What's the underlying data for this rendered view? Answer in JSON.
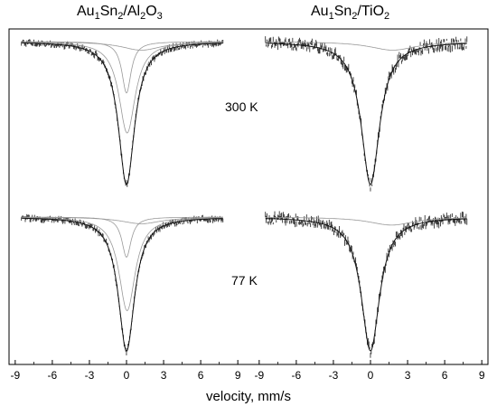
{
  "titles": {
    "left": {
      "base": "Au",
      "s1": "1",
      "mid": "Sn",
      "s2": "2",
      "tail": "/Al",
      "s3": "2",
      "end": "O",
      "s4": "3"
    },
    "right": {
      "base": "Au",
      "s1": "1",
      "mid": "Sn",
      "s2": "2",
      "tail": "/TiO",
      "s3": "2"
    }
  },
  "temperature_labels": {
    "top": "300 K",
    "bottom": "77 K"
  },
  "chart_data": {
    "type": "scatter",
    "xlabel": "velocity, mm/s",
    "xlim": [
      -9.5,
      9.5
    ],
    "xticks": [
      -9,
      -6,
      -3,
      0,
      3,
      6,
      9
    ],
    "x_data_range": [
      -8.5,
      7.8
    ],
    "grid": false,
    "panels": [
      {
        "sample": "Au1Sn2/Al2O3",
        "temperature": "300 K",
        "baseline_transmission": 1.0,
        "main_dip": {
          "center": 0.0,
          "depth": 1.0,
          "width": 1.6
        },
        "subspectra": [
          {
            "center": 0.0,
            "depth": 0.36,
            "width": 0.9
          },
          {
            "center": 0.05,
            "depth": 0.64,
            "width": 1.6
          },
          {
            "center": 1.2,
            "depth": 0.06,
            "width": 4.0
          }
        ]
      },
      {
        "sample": "Au1Sn2/TiO2",
        "temperature": "300 K",
        "baseline_transmission": 1.0,
        "main_dip": {
          "center": 0.0,
          "depth": 1.0,
          "width": 1.8
        },
        "subspectra": [
          {
            "center": 1.8,
            "depth": 0.06,
            "width": 4.5
          }
        ]
      },
      {
        "sample": "Au1Sn2/Al2O3",
        "temperature": "77 K",
        "baseline_transmission": 1.0,
        "main_dip": {
          "center": 0.0,
          "depth": 1.0,
          "width": 1.6
        },
        "subspectra": [
          {
            "center": 0.0,
            "depth": 0.3,
            "width": 0.9
          },
          {
            "center": 0.05,
            "depth": 0.7,
            "width": 1.6
          },
          {
            "center": 1.2,
            "depth": 0.05,
            "width": 4.0
          }
        ]
      },
      {
        "sample": "Au1Sn2/TiO2",
        "temperature": "77 K",
        "baseline_transmission": 1.0,
        "main_dip": {
          "center": 0.0,
          "depth": 1.0,
          "width": 1.8
        },
        "subspectra": [
          {
            "center": 1.7,
            "depth": 0.06,
            "width": 4.5
          }
        ]
      }
    ]
  }
}
